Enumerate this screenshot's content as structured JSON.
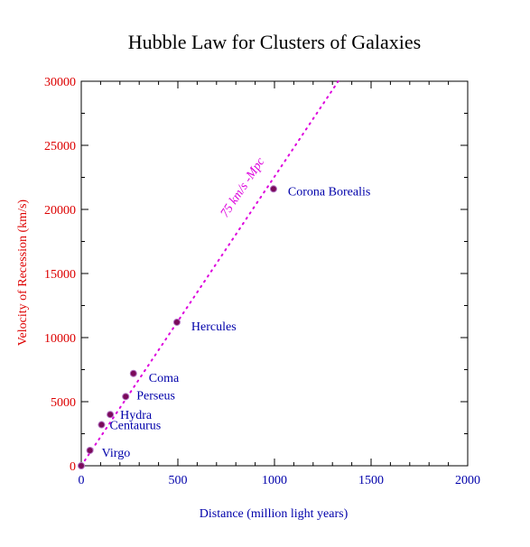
{
  "chart_data": {
    "type": "scatter",
    "title": "Hubble Law for Clusters of Galaxies",
    "xlabel": "Distance (million light years)",
    "ylabel": "Velocity of Recession (km/s)",
    "xlim": [
      0,
      2000
    ],
    "ylim": [
      0,
      30000
    ],
    "xticks": [
      "0",
      "500",
      "1000",
      "1500",
      "2000"
    ],
    "yticks": [
      "0",
      "5000",
      "10000",
      "15000",
      "20000",
      "25000",
      "30000"
    ],
    "grid": false,
    "points": [
      {
        "name": "",
        "x": 0,
        "y": 0
      },
      {
        "name": "Virgo",
        "x": 45,
        "y": 1200
      },
      {
        "name": "Centaurus",
        "x": 105,
        "y": 3200
      },
      {
        "name": "Hydra",
        "x": 150,
        "y": 4000
      },
      {
        "name": "Perseus",
        "x": 230,
        "y": 5400
      },
      {
        "name": "Coma",
        "x": 270,
        "y": 7200
      },
      {
        "name": "Hercules",
        "x": 495,
        "y": 11200
      },
      {
        "name": "Corona Borealis",
        "x": 995,
        "y": 21600
      }
    ],
    "fit_line": {
      "label": "75 km/s -Mpc",
      "x": [
        0,
        1330
      ],
      "y": [
        0,
        30000
      ]
    },
    "colors": {
      "point": "#7a0a5a",
      "fit": "#dd00dd",
      "x_text": "#0000aa",
      "y_text": "#dd0000"
    }
  }
}
